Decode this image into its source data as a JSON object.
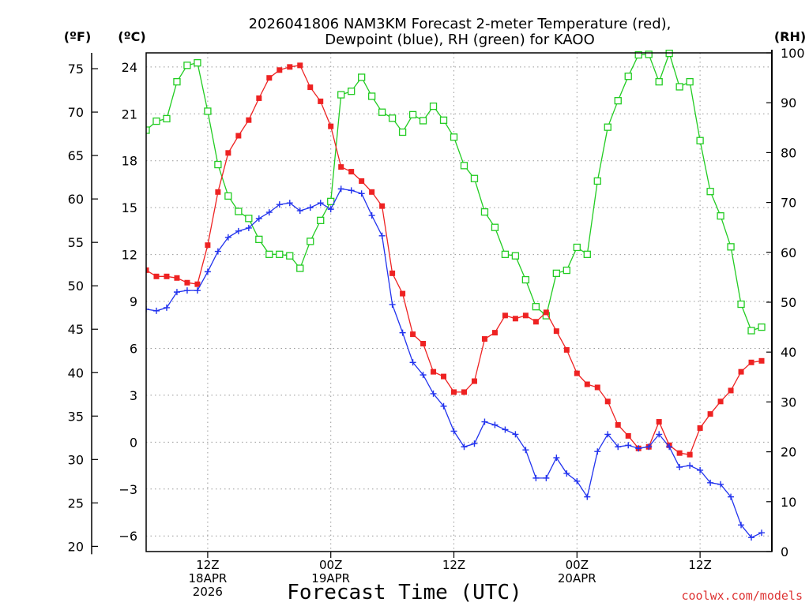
{
  "chart_data": {
    "type": "line",
    "title_line1": "2026041806 NAM3KM Forecast 2-meter Temperature (red),",
    "title_line2": "Dewpoint (blue), RH (green) for KAOO",
    "xlabel": "Forecast Time (UTC)",
    "credit": "coolwx.com/models",
    "unit_labels": {
      "fahrenheit": "(ºF)",
      "celsius": "(ºC)",
      "rh": "(RH)"
    },
    "x_range_hours": [
      0,
      61
    ],
    "x_tick_labels": [
      {
        "hour": 6,
        "lines": [
          "12Z",
          "18APR",
          "2026"
        ]
      },
      {
        "hour": 18,
        "lines": [
          "00Z",
          "19APR"
        ]
      },
      {
        "hour": 30,
        "lines": [
          "12Z"
        ]
      },
      {
        "hour": 42,
        "lines": [
          "00Z",
          "20APR"
        ]
      },
      {
        "hour": 54,
        "lines": [
          "12Z"
        ]
      }
    ],
    "celsius_axis": {
      "min": -7.0,
      "max": 24.9,
      "ticks": [
        -6,
        -3,
        0,
        3,
        6,
        9,
        12,
        15,
        18,
        21,
        24
      ]
    },
    "fahrenheit_axis": {
      "ticks": [
        20,
        25,
        30,
        35,
        40,
        45,
        50,
        55,
        60,
        65,
        70,
        75
      ]
    },
    "rh_axis": {
      "min": 0,
      "max": 100,
      "ticks": [
        0,
        10,
        20,
        30,
        40,
        50,
        60,
        70,
        80,
        90,
        100
      ]
    },
    "colors": {
      "temperature": "#ee2222",
      "dewpoint": "#2233ee",
      "rh": "#22cc22",
      "credit": "#dd3333"
    },
    "series": [
      {
        "name": "Temperature",
        "unit": "C",
        "values": [
          11.0,
          10.6,
          10.6,
          10.5,
          10.2,
          10.1,
          12.6,
          16.0,
          18.5,
          19.6,
          20.6,
          22.0,
          23.3,
          23.8,
          24.0,
          24.1,
          22.7,
          21.8,
          20.2,
          17.6,
          17.3,
          16.7,
          16.0,
          15.1,
          10.8,
          9.5,
          6.9,
          6.3,
          4.5,
          4.2,
          3.2,
          3.2,
          3.9,
          6.6,
          7.0,
          8.1,
          7.9,
          8.1,
          7.7,
          8.3,
          7.1,
          5.9,
          4.4,
          3.7,
          3.5,
          2.6,
          1.1,
          0.4,
          -0.4,
          -0.3,
          1.3,
          -0.2,
          -0.7,
          -0.8,
          0.9,
          1.8,
          2.6,
          3.3,
          4.5,
          5.1,
          5.2
        ]
      },
      {
        "name": "Dewpoint",
        "unit": "C",
        "values": [
          8.5,
          8.4,
          8.6,
          9.6,
          9.7,
          9.7,
          10.9,
          12.2,
          13.1,
          13.5,
          13.7,
          14.3,
          14.7,
          15.2,
          15.3,
          14.8,
          15.0,
          15.3,
          14.9,
          16.2,
          16.1,
          15.9,
          14.5,
          13.2,
          8.8,
          7.0,
          5.1,
          4.3,
          3.1,
          2.3,
          0.7,
          -0.3,
          -0.1,
          1.3,
          1.1,
          0.8,
          0.5,
          -0.5,
          -2.3,
          -2.3,
          -1.0,
          -2.0,
          -2.5,
          -3.5,
          -0.6,
          0.5,
          -0.3,
          -0.2,
          -0.4,
          -0.3,
          0.5,
          -0.3,
          -1.6,
          -1.5,
          -1.8,
          -2.6,
          -2.7,
          -3.5,
          -5.3,
          -6.1,
          -5.8
        ]
      },
      {
        "name": "RH",
        "unit": "%",
        "values": [
          84.5,
          86.3,
          86.8,
          94.2,
          97.5,
          98.0,
          88.3,
          77.6,
          71.3,
          68.2,
          66.8,
          62.6,
          59.6,
          59.6,
          59.3,
          56.8,
          62.2,
          66.4,
          70.2,
          91.6,
          92.3,
          95.1,
          91.3,
          88.1,
          86.9,
          84.1,
          87.6,
          86.4,
          89.3,
          86.5,
          83.1,
          77.4,
          74.8,
          68.1,
          65.0,
          59.6,
          59.3,
          54.5,
          49.1,
          47.3,
          55.8,
          56.4,
          61.0,
          59.6,
          74.3,
          85.1,
          90.4,
          95.3,
          99.6,
          99.7,
          94.2,
          99.9,
          93.2,
          94.2,
          82.4,
          72.2,
          67.3,
          61.1,
          49.6,
          44.3,
          45.0
        ]
      }
    ]
  }
}
